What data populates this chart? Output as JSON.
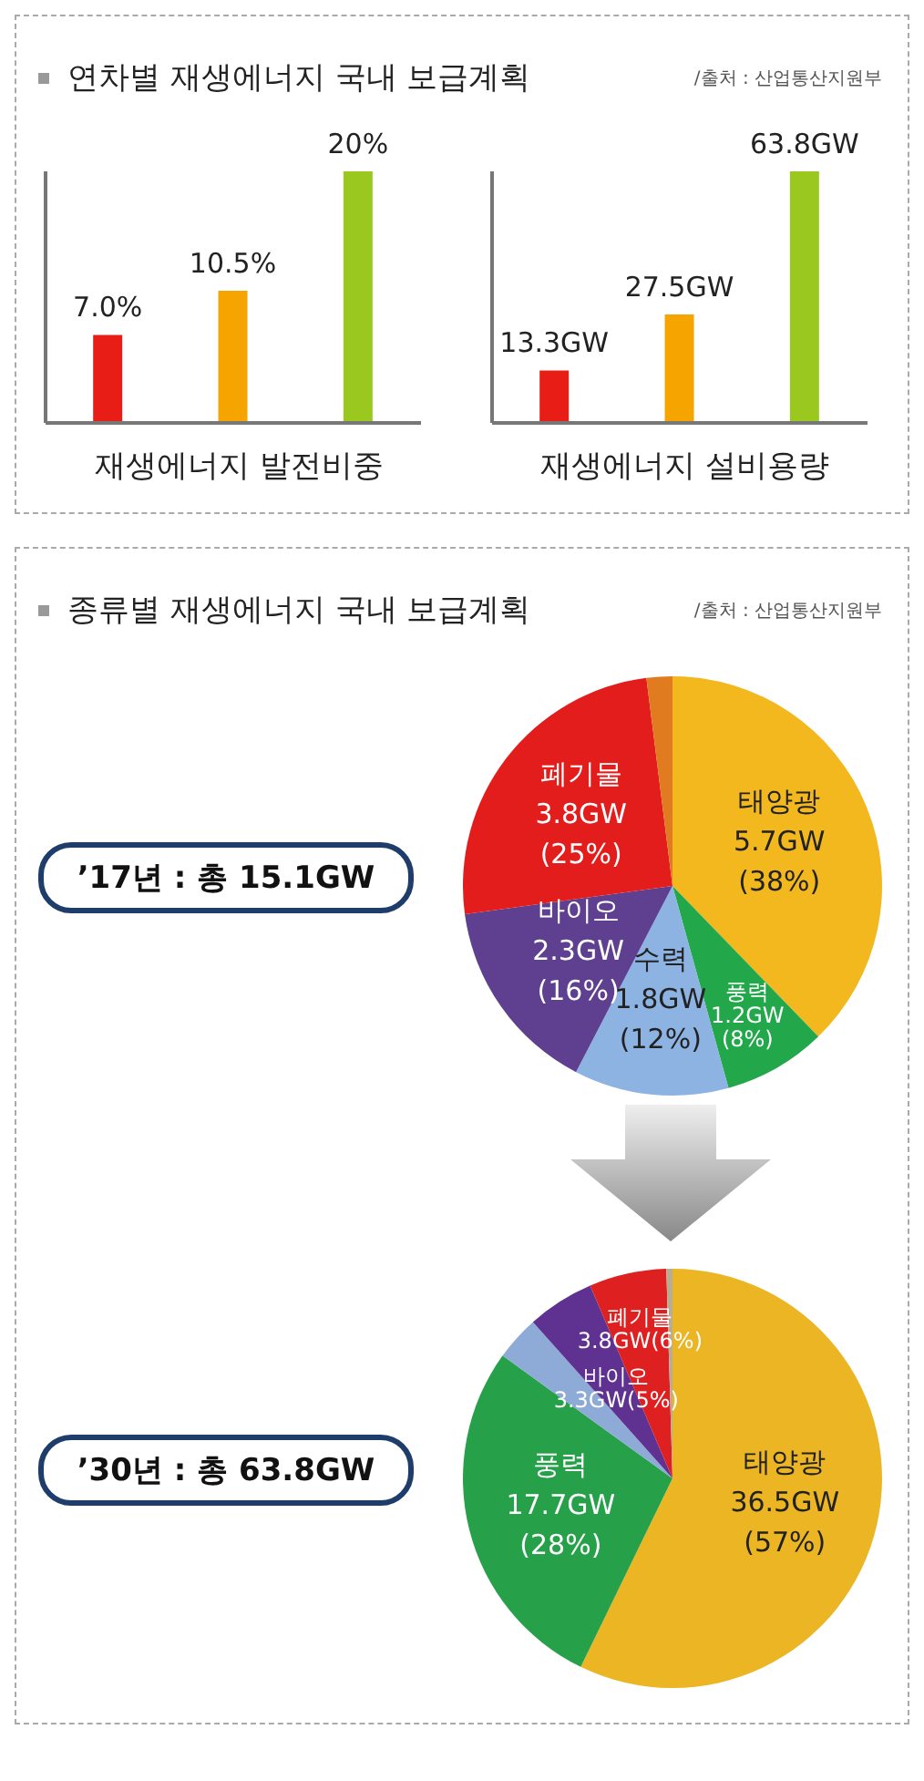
{
  "chart_data": [
    {
      "type": "bar",
      "title": "연차별 재생에너지 국내 보급계획",
      "annotations": [
        "/출처 : 산업통산지원부"
      ],
      "xlabel": "재생에너지 발전비중",
      "categories": [
        null,
        null,
        null
      ],
      "values": [
        7.0,
        10.5,
        20
      ],
      "colors": [
        "#e81e16",
        "#f5a400",
        "#9bc81f"
      ],
      "value_labels": [
        "7.0%",
        "10.5%",
        "20%"
      ],
      "tick_labels": false
    },
    {
      "type": "bar",
      "xlabel": "재생에너지 설비용량",
      "categories": [
        null,
        null,
        null
      ],
      "values": [
        13.3,
        27.5,
        63.8
      ],
      "colors": [
        "#e81e16",
        "#f5a400",
        "#9bc81f"
      ],
      "value_labels": [
        "13.3GW",
        "27.5GW",
        "63.8GW"
      ],
      "tick_labels": false
    },
    {
      "type": "pie",
      "title": "종류별 재생에너지 국내 보급계획",
      "annotations": [
        "/출처 : 산업통산지원부",
        "’17년 : 총 15.1GW"
      ],
      "categories": [
        "태양광",
        "풍력",
        "수력",
        "바이오",
        "폐기물",
        null
      ],
      "values": [
        5.7,
        1.2,
        1.8,
        2.3,
        3.8,
        0.3
      ],
      "colors": [
        "#f2b81e",
        "#22a84a",
        "#8db3e2",
        "#5f3f8f",
        "#e31c1c",
        "#e07b20"
      ],
      "value_labels": [
        "5.7GW\n(38%)",
        "1.2GW\n(8%)",
        "1.8GW\n(12%)",
        "2.3GW\n(16%)",
        "3.8GW\n(25%)",
        null
      ]
    },
    {
      "type": "pie",
      "annotations": [
        "’30년 : 총 63.8GW"
      ],
      "categories": [
        "태양광",
        "풍력",
        null,
        "바이오",
        "폐기물",
        null
      ],
      "values": [
        36.5,
        17.7,
        2.2,
        3.3,
        3.8,
        0.3
      ],
      "colors": [
        "#ecb523",
        "#27a04a",
        "#8eaad6",
        "#5f3190",
        "#df2020",
        "#b8ad90"
      ],
      "value_labels": [
        "36.5GW\n(57%)",
        "17.7GW\n(28%)",
        null,
        "3.3GW(5%)",
        "3.8GW(6%)",
        null
      ]
    }
  ]
}
